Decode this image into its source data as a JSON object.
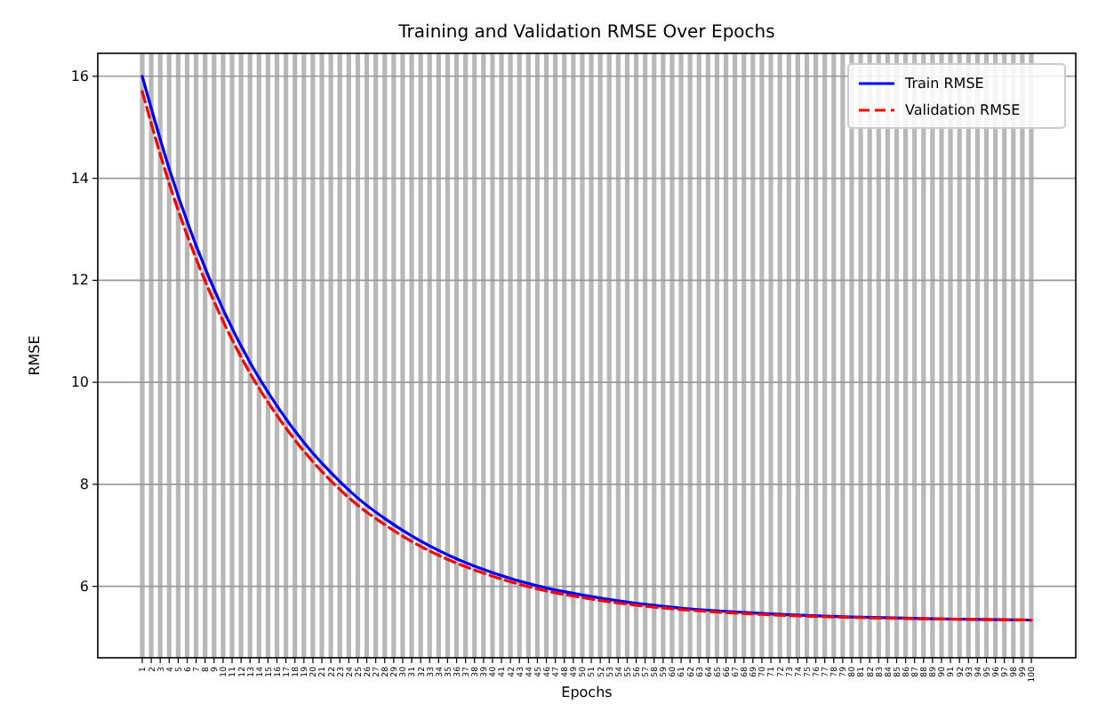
{
  "chart_data": {
    "type": "line",
    "title": "Training and Validation RMSE Over Epochs",
    "xlabel": "Epochs",
    "ylabel": "RMSE",
    "xlim": [
      -3.95,
      104.95
    ],
    "ylim": [
      4.6,
      16.45
    ],
    "xticks": [
      1,
      2,
      3,
      4,
      5,
      6,
      7,
      8,
      9,
      10,
      11,
      12,
      13,
      14,
      15,
      16,
      17,
      18,
      19,
      20,
      21,
      22,
      23,
      24,
      25,
      26,
      27,
      28,
      29,
      30,
      31,
      32,
      33,
      34,
      35,
      36,
      37,
      38,
      39,
      40,
      41,
      42,
      43,
      44,
      45,
      46,
      47,
      48,
      49,
      50,
      51,
      52,
      53,
      54,
      55,
      56,
      57,
      58,
      59,
      60,
      61,
      62,
      63,
      64,
      65,
      66,
      67,
      68,
      69,
      70,
      71,
      72,
      73,
      74,
      75,
      76,
      77,
      78,
      79,
      80,
      81,
      82,
      83,
      84,
      85,
      86,
      87,
      88,
      89,
      90,
      91,
      92,
      93,
      94,
      95,
      96,
      97,
      98,
      99,
      100
    ],
    "yticks": [
      6,
      8,
      10,
      12,
      14,
      16
    ],
    "x": [
      1,
      4,
      7,
      10,
      13,
      16,
      19,
      22,
      25,
      28,
      31,
      35,
      40,
      45,
      50,
      55,
      60,
      70,
      80,
      90,
      100
    ],
    "series": [
      {
        "name": "Train RMSE",
        "color": "#0000ff",
        "line_style": "solid",
        "values": [
          16.0,
          14.19,
          12.68,
          11.43,
          10.39,
          9.54,
          8.82,
          8.23,
          7.73,
          7.33,
          6.99,
          6.62,
          6.27,
          6.01,
          5.83,
          5.69,
          5.59,
          5.47,
          5.4,
          5.36,
          5.34
        ]
      },
      {
        "name": "Validation RMSE",
        "color": "#ff0000",
        "line_style": "dashed",
        "values": [
          15.7,
          13.9,
          12.42,
          11.2,
          10.18,
          9.35,
          8.65,
          8.07,
          7.59,
          7.21,
          6.88,
          6.53,
          6.2,
          5.95,
          5.78,
          5.65,
          5.56,
          5.45,
          5.39,
          5.36,
          5.34
        ]
      }
    ],
    "grid": true,
    "legend": "top right"
  }
}
